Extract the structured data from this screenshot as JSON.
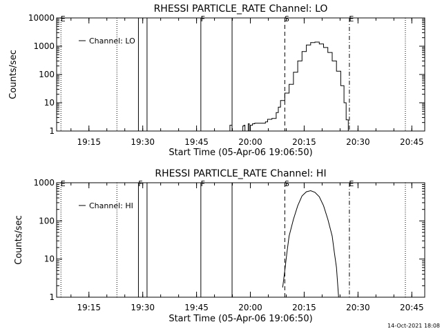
{
  "footer": {
    "timestamp": "14-Oct-2021 18:08"
  },
  "chart_data": [
    {
      "type": "line",
      "title": "RHESSI PARTICLE_RATE Channel: LO",
      "xlabel": "Start Time (05-Apr-06 19:06:50)",
      "ylabel": "Counts/sec",
      "y_scale": "log",
      "ylim": [
        1,
        10000
      ],
      "xlim_minutes": [
        19.1,
        20.81
      ],
      "x_ticks": [
        {
          "t": 19.25,
          "label": "19:15"
        },
        {
          "t": 19.5,
          "label": "19:30"
        },
        {
          "t": 19.75,
          "label": "19:45"
        },
        {
          "t": 20.0,
          "label": "20:00"
        },
        {
          "t": 20.25,
          "label": "20:15"
        },
        {
          "t": 20.5,
          "label": "20:30"
        },
        {
          "t": 20.75,
          "label": "20:45"
        }
      ],
      "y_ticks": [
        {
          "v": 1,
          "label": "1"
        },
        {
          "v": 10,
          "label": "10"
        },
        {
          "v": 100,
          "label": "100"
        },
        {
          "v": 1000,
          "label": "1000"
        },
        {
          "v": 10000,
          "label": "10000"
        }
      ],
      "legend": {
        "position": "top-left",
        "label": "Channel: LO"
      },
      "markers": [
        {
          "t": 19.12,
          "style": "dotted",
          "label": "E"
        },
        {
          "t": 19.38,
          "style": "dotted",
          "label": ""
        },
        {
          "t": 19.48,
          "style": "solid",
          "label": ""
        },
        {
          "t": 19.52,
          "style": "solid",
          "label": ""
        },
        {
          "t": 19.77,
          "style": "solid",
          "label": "F"
        },
        {
          "t": 19.915,
          "style": "solid",
          "label": ""
        },
        {
          "t": 20.16,
          "style": "dashed",
          "label": "S"
        },
        {
          "t": 20.46,
          "style": "dashdot",
          "label": "E"
        },
        {
          "t": 20.72,
          "style": "dotted",
          "label": ""
        }
      ],
      "series": [
        {
          "step": true,
          "points": [
            [
              19.89,
              1
            ],
            [
              19.905,
              1.6
            ],
            [
              19.915,
              1
            ],
            [
              19.96,
              1
            ],
            [
              19.965,
              1.5
            ],
            [
              19.97,
              1.6
            ],
            [
              19.975,
              1
            ],
            [
              19.985,
              1
            ],
            [
              19.99,
              1.8
            ],
            [
              19.995,
              1
            ],
            [
              20.0,
              1.6
            ],
            [
              20.01,
              1.8
            ],
            [
              20.02,
              1.9
            ],
            [
              20.06,
              1.9
            ],
            [
              20.07,
              2.1
            ],
            [
              20.08,
              2.6
            ],
            [
              20.1,
              2.8
            ],
            [
              20.12,
              4.5
            ],
            [
              20.13,
              7
            ],
            [
              20.14,
              12
            ],
            [
              20.16,
              22
            ],
            [
              20.18,
              45
            ],
            [
              20.2,
              120
            ],
            [
              20.22,
              300
            ],
            [
              20.24,
              650
            ],
            [
              20.26,
              1100
            ],
            [
              20.28,
              1350
            ],
            [
              20.3,
              1400
            ],
            [
              20.32,
              1200
            ],
            [
              20.34,
              900
            ],
            [
              20.36,
              600
            ],
            [
              20.38,
              300
            ],
            [
              20.4,
              130
            ],
            [
              20.42,
              40
            ],
            [
              20.435,
              10
            ],
            [
              20.445,
              2.5
            ],
            [
              20.455,
              1
            ]
          ]
        }
      ]
    },
    {
      "type": "line",
      "title": "RHESSI PARTICLE_RATE Channel: HI",
      "xlabel": "Start Time (05-Apr-06 19:06:50)",
      "ylabel": "Counts/sec",
      "y_scale": "log",
      "ylim": [
        1,
        1000
      ],
      "xlim_minutes": [
        19.1,
        20.81
      ],
      "x_ticks": [
        {
          "t": 19.25,
          "label": "19:15"
        },
        {
          "t": 19.5,
          "label": "19:30"
        },
        {
          "t": 19.75,
          "label": "19:45"
        },
        {
          "t": 20.0,
          "label": "20:00"
        },
        {
          "t": 20.25,
          "label": "20:15"
        },
        {
          "t": 20.5,
          "label": "20:30"
        },
        {
          "t": 20.75,
          "label": "20:45"
        }
      ],
      "y_ticks": [
        {
          "v": 1,
          "label": "1"
        },
        {
          "v": 10,
          "label": "10"
        },
        {
          "v": 100,
          "label": "100"
        },
        {
          "v": 1000,
          "label": "1000"
        }
      ],
      "legend": {
        "position": "top-left",
        "label": "Channel: HI"
      },
      "markers": [
        {
          "t": 19.12,
          "style": "dotted",
          "label": "E"
        },
        {
          "t": 19.38,
          "style": "dotted",
          "label": ""
        },
        {
          "t": 19.48,
          "style": "solid",
          "label": "F"
        },
        {
          "t": 19.52,
          "style": "solid",
          "label": ""
        },
        {
          "t": 19.77,
          "style": "solid",
          "label": "F"
        },
        {
          "t": 19.915,
          "style": "solid",
          "label": ""
        },
        {
          "t": 20.16,
          "style": "dashed",
          "label": "S"
        },
        {
          "t": 20.46,
          "style": "dashdot",
          "label": "E"
        },
        {
          "t": 20.72,
          "style": "dotted",
          "label": ""
        }
      ],
      "series": [
        {
          "step": false,
          "points": [
            [
              20.15,
              1.8
            ],
            [
              20.16,
              5
            ],
            [
              20.17,
              15
            ],
            [
              20.18,
              40
            ],
            [
              20.2,
              110
            ],
            [
              20.22,
              250
            ],
            [
              20.24,
              450
            ],
            [
              20.26,
              580
            ],
            [
              20.28,
              620
            ],
            [
              20.3,
              560
            ],
            [
              20.32,
              430
            ],
            [
              20.34,
              250
            ],
            [
              20.36,
              110
            ],
            [
              20.38,
              40
            ],
            [
              20.39,
              15
            ],
            [
              20.4,
              6
            ],
            [
              20.41,
              1
            ]
          ]
        }
      ]
    }
  ]
}
